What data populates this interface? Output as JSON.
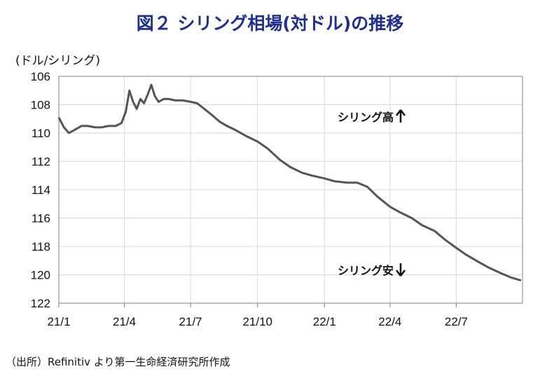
{
  "title": "図２ シリング相場(対ドル)の推移",
  "source": "（出所）Refinitiv より第一生命経済研究所作成",
  "chart_data": {
    "type": "line",
    "ylabel": "(ドル/シリング)",
    "ylim": [
      106,
      122
    ],
    "y_inverted": true,
    "yticks": [
      "106",
      "108",
      "110",
      "112",
      "114",
      "116",
      "118",
      "120",
      "122"
    ],
    "xticks": [
      "21/1",
      "21/4",
      "21/7",
      "21/10",
      "22/1",
      "22/4",
      "22/7"
    ],
    "grid": true,
    "line_color": "#555555",
    "series": [
      {
        "x": [
          "2021-01-01",
          "2021-01-08",
          "2021-01-15",
          "2021-01-22",
          "2021-02-01",
          "2021-02-10",
          "2021-02-20",
          "2021-03-01",
          "2021-03-10",
          "2021-03-20",
          "2021-03-28",
          "2021-04-03",
          "2021-04-08",
          "2021-04-13",
          "2021-04-18",
          "2021-04-23",
          "2021-04-28",
          "2021-05-03",
          "2021-05-08",
          "2021-05-13",
          "2021-05-18",
          "2021-05-25",
          "2021-06-01",
          "2021-06-10",
          "2021-06-20",
          "2021-07-01",
          "2021-07-10",
          "2021-07-20",
          "2021-08-01",
          "2021-08-10",
          "2021-08-20",
          "2021-09-01",
          "2021-09-15",
          "2021-10-01",
          "2021-10-15",
          "2021-11-01",
          "2021-11-15",
          "2021-12-01",
          "2021-12-15",
          "2022-01-01",
          "2022-01-15",
          "2022-02-01",
          "2022-02-15",
          "2022-03-01",
          "2022-03-15",
          "2022-04-01",
          "2022-04-15",
          "2022-05-01",
          "2022-05-15",
          "2022-06-01",
          "2022-06-15",
          "2022-07-01",
          "2022-07-15",
          "2022-08-01",
          "2022-08-15",
          "2022-09-01",
          "2022-09-15",
          "2022-09-28"
        ],
        "values": [
          108.9,
          109.6,
          110.0,
          109.8,
          109.5,
          109.5,
          109.6,
          109.6,
          109.5,
          109.5,
          109.3,
          108.5,
          107.0,
          107.8,
          108.3,
          107.6,
          107.9,
          107.3,
          106.6,
          107.4,
          107.8,
          107.6,
          107.6,
          107.7,
          107.7,
          107.8,
          107.9,
          108.3,
          108.8,
          109.2,
          109.5,
          109.8,
          110.2,
          110.6,
          111.1,
          111.9,
          112.4,
          112.8,
          113.0,
          113.2,
          113.4,
          113.5,
          113.5,
          113.8,
          114.5,
          115.2,
          115.6,
          116.0,
          116.5,
          116.9,
          117.5,
          118.1,
          118.6,
          119.1,
          119.5,
          119.9,
          120.2,
          120.4
        ]
      }
    ],
    "annotations": [
      {
        "text": "シリング高",
        "arrow": "up"
      },
      {
        "text": "シリング安",
        "arrow": "down"
      }
    ]
  }
}
